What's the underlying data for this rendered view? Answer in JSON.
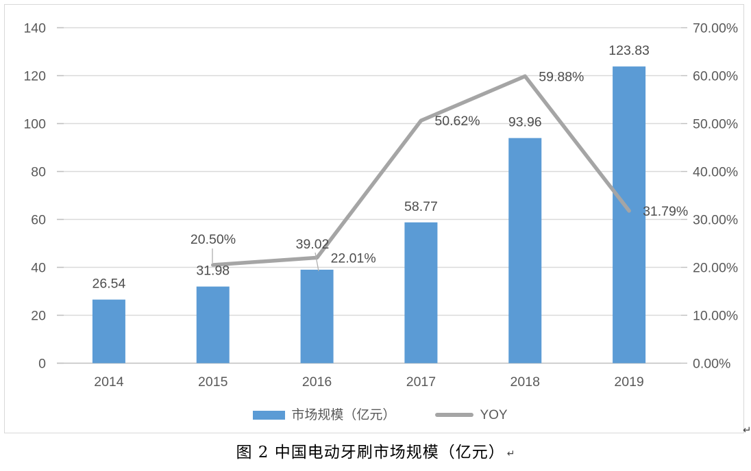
{
  "chart_data": {
    "type": "combo-bar-line",
    "categories": [
      "2014",
      "2015",
      "2016",
      "2017",
      "2018",
      "2019"
    ],
    "series": [
      {
        "name": "市场规模（亿元）",
        "type": "bar",
        "axis": "left",
        "color": "#5B9BD5",
        "values": [
          26.54,
          31.98,
          39.02,
          58.77,
          93.96,
          123.83
        ],
        "data_labels": [
          "26.54",
          "31.98",
          "39.02",
          "58.77",
          "93.96",
          "123.83"
        ]
      },
      {
        "name": "YOY",
        "type": "line",
        "axis": "right",
        "color": "#A5A5A5",
        "values_pct": [
          null,
          20.5,
          22.01,
          50.62,
          59.88,
          31.79
        ],
        "data_labels": [
          null,
          "20.50%",
          "22.01%",
          "50.62%",
          "59.88%",
          "31.79%"
        ]
      }
    ],
    "left_axis": {
      "min": 0,
      "max": 140,
      "step": 20,
      "tick_labels": [
        "0",
        "20",
        "40",
        "60",
        "80",
        "100",
        "120",
        "140"
      ]
    },
    "right_axis": {
      "min_pct": 0,
      "max_pct": 70,
      "step_pct": 10,
      "tick_labels": [
        "0.00%",
        "10.00%",
        "20.00%",
        "30.00%",
        "40.00%",
        "50.00%",
        "60.00%",
        "70.00%"
      ]
    },
    "grid": true,
    "legend_position": "bottom"
  },
  "legend": {
    "items": [
      {
        "label": "市场规模（亿元）",
        "swatch": "bar",
        "color": "#5B9BD5"
      },
      {
        "label": "YOY",
        "swatch": "line",
        "color": "#A5A5A5"
      }
    ]
  },
  "caption": {
    "text": "图 2 中国电动牙刷市场规模（亿元）",
    "return_mark": "↵"
  },
  "frame": {
    "return_mark": "↵"
  },
  "colors": {
    "bar": "#5B9BD5",
    "line": "#A5A5A5",
    "grid": "#D9D9D9",
    "axis_line": "#BFBFBF",
    "axis_text": "#595959",
    "data_label_text": "#4D4D4D",
    "leader": "#AFAFAF",
    "frame_border": "#D8D8D8",
    "background": "#FFFFFF"
  }
}
